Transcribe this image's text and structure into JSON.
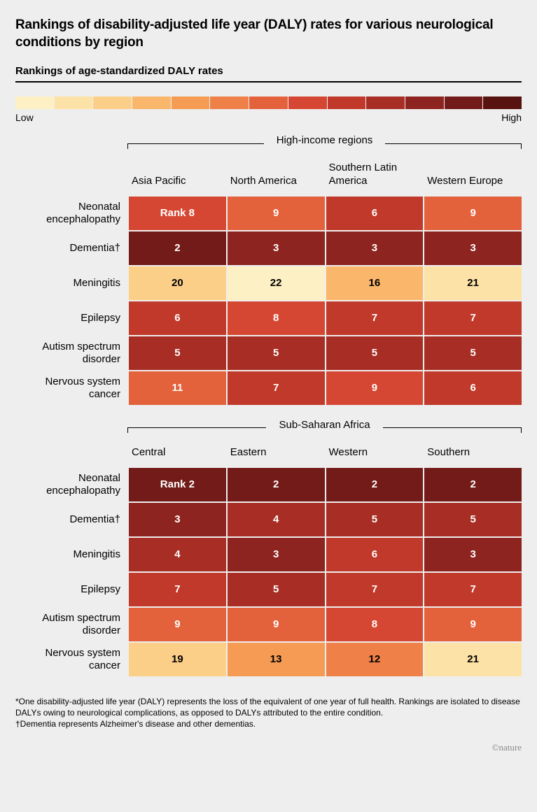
{
  "title": "Rankings of disability-adjusted life year (DALY) rates for various neurological conditions by region",
  "subtitle": "Rankings of age-standardized DALY rates",
  "gradient": {
    "colors": [
      "#fdf0c4",
      "#fde2a7",
      "#fccf89",
      "#fab66a",
      "#f59b53",
      "#ee8048",
      "#e3623c",
      "#d64733",
      "#c0392b",
      "#a82e25",
      "#8e241f",
      "#731b18",
      "#58120f"
    ],
    "low_label": "Low",
    "high_label": "High"
  },
  "row_labels": [
    "Neonatal encephalopathy",
    "Dementia†",
    "Meningitis",
    "Epilepsy",
    "Autism spectrum disorder",
    "Nervous system cancer"
  ],
  "sections": [
    {
      "label": "High-income regions",
      "columns": [
        "Asia Pacific",
        "North America",
        "Southern Latin America",
        "Western Europe"
      ],
      "cells": [
        [
          {
            "v": "Rank 8",
            "bg": "#d64733",
            "fg": "#ffffff"
          },
          {
            "v": "9",
            "bg": "#e3623c",
            "fg": "#ffffff"
          },
          {
            "v": "6",
            "bg": "#c0392b",
            "fg": "#ffffff"
          },
          {
            "v": "9",
            "bg": "#e3623c",
            "fg": "#ffffff"
          }
        ],
        [
          {
            "v": "2",
            "bg": "#731b18",
            "fg": "#ffffff"
          },
          {
            "v": "3",
            "bg": "#8e241f",
            "fg": "#ffffff"
          },
          {
            "v": "3",
            "bg": "#8e241f",
            "fg": "#ffffff"
          },
          {
            "v": "3",
            "bg": "#8e241f",
            "fg": "#ffffff"
          }
        ],
        [
          {
            "v": "20",
            "bg": "#fccf89",
            "fg": "#000000"
          },
          {
            "v": "22",
            "bg": "#fdf0c4",
            "fg": "#000000"
          },
          {
            "v": "16",
            "bg": "#fab66a",
            "fg": "#000000"
          },
          {
            "v": "21",
            "bg": "#fde2a7",
            "fg": "#000000"
          }
        ],
        [
          {
            "v": "6",
            "bg": "#c0392b",
            "fg": "#ffffff"
          },
          {
            "v": "8",
            "bg": "#d64733",
            "fg": "#ffffff"
          },
          {
            "v": "7",
            "bg": "#c0392b",
            "fg": "#ffffff"
          },
          {
            "v": "7",
            "bg": "#c0392b",
            "fg": "#ffffff"
          }
        ],
        [
          {
            "v": "5",
            "bg": "#a82e25",
            "fg": "#ffffff"
          },
          {
            "v": "5",
            "bg": "#a82e25",
            "fg": "#ffffff"
          },
          {
            "v": "5",
            "bg": "#a82e25",
            "fg": "#ffffff"
          },
          {
            "v": "5",
            "bg": "#a82e25",
            "fg": "#ffffff"
          }
        ],
        [
          {
            "v": "11",
            "bg": "#e3623c",
            "fg": "#ffffff"
          },
          {
            "v": "7",
            "bg": "#c0392b",
            "fg": "#ffffff"
          },
          {
            "v": "9",
            "bg": "#d64733",
            "fg": "#ffffff"
          },
          {
            "v": "6",
            "bg": "#c0392b",
            "fg": "#ffffff"
          }
        ]
      ]
    },
    {
      "label": "Sub-Saharan Africa",
      "columns": [
        "Central",
        "Eastern",
        "Western",
        "Southern"
      ],
      "cells": [
        [
          {
            "v": "Rank 2",
            "bg": "#731b18",
            "fg": "#ffffff"
          },
          {
            "v": "2",
            "bg": "#731b18",
            "fg": "#ffffff"
          },
          {
            "v": "2",
            "bg": "#731b18",
            "fg": "#ffffff"
          },
          {
            "v": "2",
            "bg": "#731b18",
            "fg": "#ffffff"
          }
        ],
        [
          {
            "v": "3",
            "bg": "#8e241f",
            "fg": "#ffffff"
          },
          {
            "v": "4",
            "bg": "#a82e25",
            "fg": "#ffffff"
          },
          {
            "v": "5",
            "bg": "#a82e25",
            "fg": "#ffffff"
          },
          {
            "v": "5",
            "bg": "#a82e25",
            "fg": "#ffffff"
          }
        ],
        [
          {
            "v": "4",
            "bg": "#a82e25",
            "fg": "#ffffff"
          },
          {
            "v": "3",
            "bg": "#8e241f",
            "fg": "#ffffff"
          },
          {
            "v": "6",
            "bg": "#c0392b",
            "fg": "#ffffff"
          },
          {
            "v": "3",
            "bg": "#8e241f",
            "fg": "#ffffff"
          }
        ],
        [
          {
            "v": "7",
            "bg": "#c0392b",
            "fg": "#ffffff"
          },
          {
            "v": "5",
            "bg": "#a82e25",
            "fg": "#ffffff"
          },
          {
            "v": "7",
            "bg": "#c0392b",
            "fg": "#ffffff"
          },
          {
            "v": "7",
            "bg": "#c0392b",
            "fg": "#ffffff"
          }
        ],
        [
          {
            "v": "9",
            "bg": "#e3623c",
            "fg": "#ffffff"
          },
          {
            "v": "9",
            "bg": "#e3623c",
            "fg": "#ffffff"
          },
          {
            "v": "8",
            "bg": "#d64733",
            "fg": "#ffffff"
          },
          {
            "v": "9",
            "bg": "#e3623c",
            "fg": "#ffffff"
          }
        ],
        [
          {
            "v": "19",
            "bg": "#fccf89",
            "fg": "#000000"
          },
          {
            "v": "13",
            "bg": "#f59b53",
            "fg": "#000000"
          },
          {
            "v": "12",
            "bg": "#ee8048",
            "fg": "#000000"
          },
          {
            "v": "21",
            "bg": "#fde2a7",
            "fg": "#000000"
          }
        ]
      ]
    }
  ],
  "footnote": "*One disability-adjusted life year (DALY) represents the loss of the equivalent of one year of full health. Rankings are isolated to disease DALYs owing to neurological complications, as opposed to DALYs attributed to the entire condition.\n†Dementia represents Alzheimer's disease and other dementias.",
  "credit": "©nature"
}
